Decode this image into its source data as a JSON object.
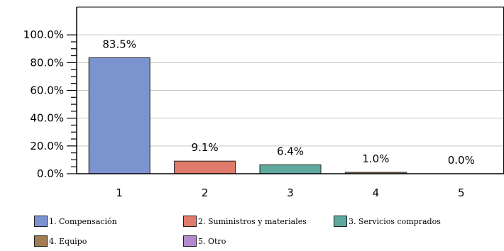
{
  "chart_data": {
    "type": "bar",
    "categories": [
      "1",
      "2",
      "3",
      "4",
      "5"
    ],
    "values": [
      83.5,
      9.1,
      6.4,
      1.0,
      0.0
    ],
    "data_labels": [
      "83.5%",
      "9.1%",
      "6.4%",
      "1.0%",
      "0.0%"
    ],
    "colors": [
      "#7b93cf",
      "#e07a6a",
      "#5fa89e",
      "#a07d52",
      "#b38ad0"
    ],
    "ylim": [
      0,
      120
    ],
    "yticks": [
      0,
      20,
      40,
      60,
      80,
      100
    ],
    "ytick_labels": [
      "0.0%",
      "20.0%",
      "40.0%",
      "60.0%",
      "80.0%",
      "100.0%"
    ],
    "grid": true,
    "legend_position": "bottom",
    "legend": [
      {
        "label": "1. Compensación",
        "color": "#7b93cf"
      },
      {
        "label": "2. Suministros y materiales",
        "color": "#e07a6a"
      },
      {
        "label": "3. Servicios comprados",
        "color": "#5fa89e"
      },
      {
        "label": "4. Equipo",
        "color": "#a07d52"
      },
      {
        "label": "5. Otro",
        "color": "#b38ad0"
      }
    ]
  }
}
